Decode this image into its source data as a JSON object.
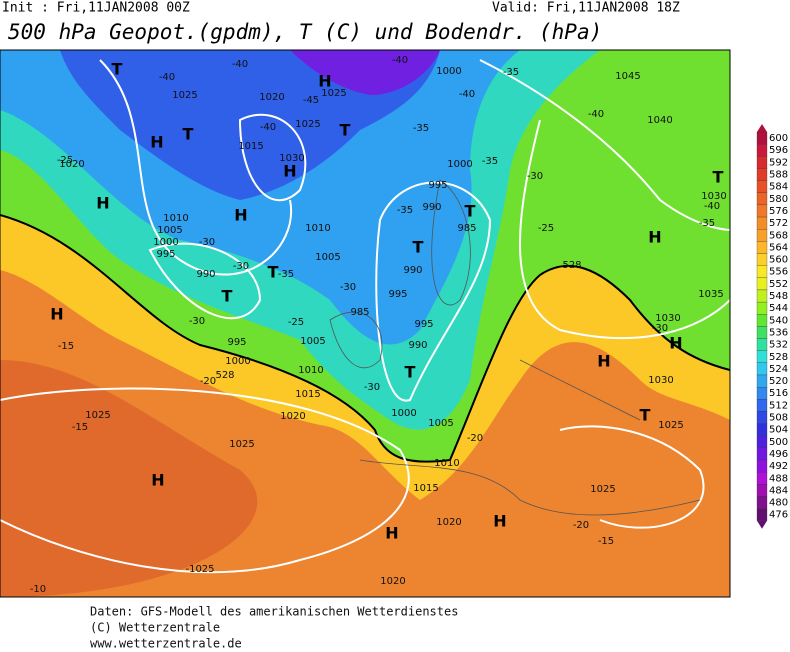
{
  "header": {
    "init": "Init : Fri,11JAN2008 00Z",
    "valid": "Valid: Fri,11JAN2008 18Z",
    "title": "500 hPa Geopot.(gpdm), T (C) und Bodendr. (hPa)"
  },
  "map": {
    "labels": [
      "T",
      "-40",
      "1025",
      "-40",
      "1020",
      "-45",
      "H",
      "1025",
      "-40",
      "1000",
      "-40",
      "-35",
      "1045",
      "-40",
      "1040",
      "1025",
      "-40",
      "T",
      "-35",
      "T",
      "H",
      "1015",
      "1030",
      "H",
      "-25",
      "1020",
      "1000",
      "-35",
      "-30",
      "995",
      "990",
      "-35",
      "T",
      "985",
      "H",
      "H",
      "1010",
      "1005",
      "1000",
      "995",
      "-30",
      "1010",
      "-25",
      "T",
      "990",
      "-30",
      "T",
      "990",
      "T",
      "-35",
      "1005",
      "H",
      "-30",
      "995",
      "H",
      "-30",
      "-25",
      "985",
      "995",
      "995",
      "1005",
      "990",
      "-15",
      "T",
      "1000",
      "1010",
      "-20",
      "1015",
      "-30",
      "1030",
      "1000",
      "1005",
      "1020",
      "1025",
      "-15",
      "-20",
      "1025",
      "H",
      "1010",
      "1015",
      "1025",
      "H",
      "H",
      "1020",
      "-20",
      "-15",
      "-1025",
      "1020",
      "-10",
      "T",
      "1030",
      "-40",
      "-35",
      "H",
      "T",
      "1025",
      "1035",
      "1030",
      "-30",
      "H",
      "528",
      "528"
    ]
  },
  "colorbar": {
    "ticks": [
      600,
      596,
      592,
      588,
      584,
      580,
      576,
      572,
      568,
      564,
      560,
      556,
      552,
      548,
      544,
      540,
      536,
      532,
      528,
      524,
      520,
      516,
      512,
      508,
      504,
      500,
      496,
      492,
      488,
      484,
      480,
      476
    ],
    "colors": [
      "#b0103c",
      "#c8183c",
      "#d82830",
      "#e03c28",
      "#e85028",
      "#ec6428",
      "#f07828",
      "#f48c28",
      "#f8a028",
      "#fcb828",
      "#fcd028",
      "#f8e828",
      "#e8f020",
      "#c0f020",
      "#90f020",
      "#60e830",
      "#40e060",
      "#30e0a0",
      "#30e0d8",
      "#30c8f0",
      "#30a8f0",
      "#3088f0",
      "#3068f0",
      "#3048e8",
      "#3030e0",
      "#5020e0",
      "#7018e0",
      "#9010e0",
      "#b010d8",
      "#a010b0",
      "#801090",
      "#601070"
    ]
  },
  "footer": {
    "line1": "Daten: GFS-Modell des amerikanischen Wetterdienstes",
    "line2": "(C) Wetterzentrale",
    "line3": "www.wetterzentrale.de"
  }
}
